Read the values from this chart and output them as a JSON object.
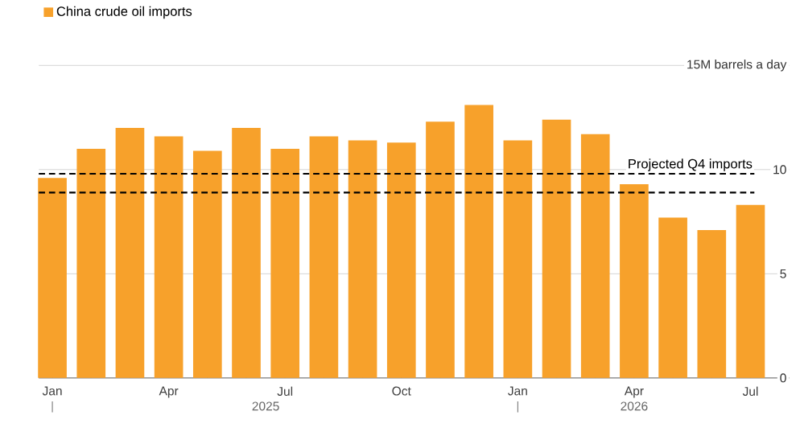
{
  "chart_data": {
    "type": "bar",
    "categories": [
      "Jan",
      null,
      null,
      "Apr",
      null,
      null,
      "Jul",
      null,
      null,
      "Oct",
      null,
      null,
      "Jan",
      null,
      null,
      "Apr",
      null,
      null,
      "Jul"
    ],
    "series": [
      {
        "name": "China crude oil imports",
        "color": "#f7a12b",
        "values": [
          9.6,
          11.0,
          12.0,
          11.6,
          10.9,
          12.0,
          11.0,
          11.6,
          11.4,
          11.3,
          12.3,
          13.1,
          11.4,
          12.4,
          11.7,
          9.3,
          7.7,
          7.1,
          8.3
        ]
      }
    ],
    "ylim": [
      0,
      15
    ],
    "yticks": [
      0,
      5,
      10,
      {
        "value": 15,
        "label": "15M barrels a day"
      }
    ],
    "grid": "y",
    "legend": "top left",
    "ref_lines": [
      {
        "axis": "y",
        "value": 9.8,
        "label": "Projected Q4 imports",
        "color": "#000000",
        "line_style": "dashed"
      },
      {
        "axis": "y",
        "value": 8.9,
        "color": "#000000",
        "line_style": "dashed"
      }
    ],
    "annotations": [
      "2025",
      "2026"
    ]
  }
}
